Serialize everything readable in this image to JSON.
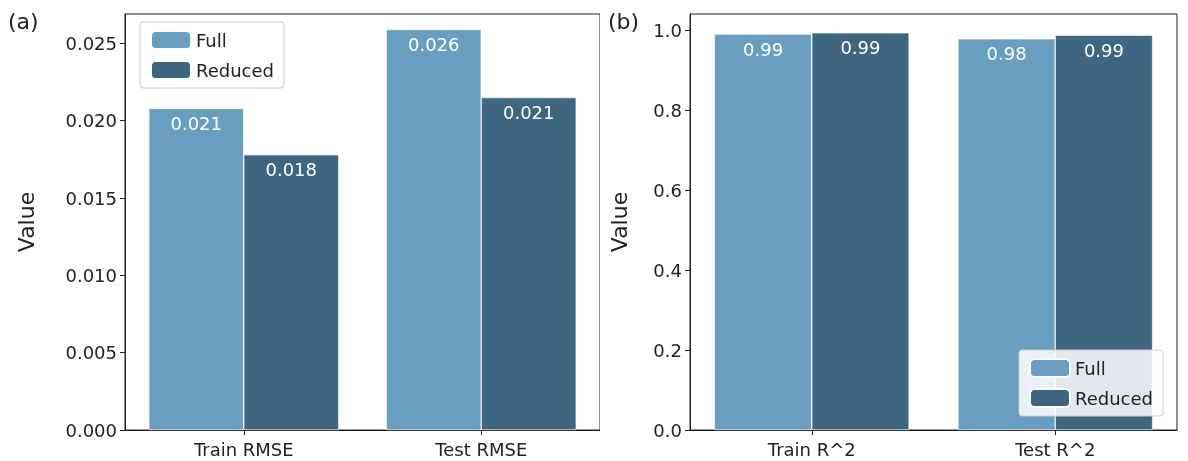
{
  "chart_data": [
    {
      "type": "bar",
      "annotations": [
        "(a)"
      ],
      "ylabel": "Value",
      "categories": [
        "Train RMSE",
        "Test RMSE"
      ],
      "series": [
        {
          "name": "Full",
          "color": "#6a9ec0",
          "values": [
            0.0208,
            0.0259
          ],
          "value_labels": [
            "0.021",
            "0.026"
          ]
        },
        {
          "name": "Reduced",
          "color": "#3f6680",
          "values": [
            0.0178,
            0.0215
          ],
          "value_labels": [
            "0.018",
            "0.021"
          ]
        }
      ],
      "ylim": [
        0,
        0.0269
      ],
      "yticks": [
        {
          "value": 0,
          "label": "0.000"
        },
        {
          "value": 0.005,
          "label": "0.005"
        },
        {
          "value": 0.01,
          "label": "0.010"
        },
        {
          "value": 0.015,
          "label": "0.015"
        },
        {
          "value": 0.02,
          "label": "0.020"
        },
        {
          "value": 0.025,
          "label": "0.025"
        }
      ],
      "legend": "top left",
      "grid": false
    },
    {
      "type": "bar",
      "annotations": [
        "(b)"
      ],
      "ylabel": "Value",
      "categories": [
        "Train R^2",
        "Test R^2"
      ],
      "series": [
        {
          "name": "Full",
          "color": "#6a9ec0",
          "values": [
            0.99,
            0.978
          ],
          "value_labels": [
            "0.99",
            "0.98"
          ]
        },
        {
          "name": "Reduced",
          "color": "#3f6680",
          "values": [
            0.993,
            0.987
          ],
          "value_labels": [
            "0.99",
            "0.99"
          ]
        }
      ],
      "ylim": [
        0,
        1.04
      ],
      "yticks": [
        {
          "value": 0,
          "label": "0.0"
        },
        {
          "value": 0.2,
          "label": "0.2"
        },
        {
          "value": 0.4,
          "label": "0.4"
        },
        {
          "value": 0.6,
          "label": "0.6"
        },
        {
          "value": 0.8,
          "label": "0.8"
        },
        {
          "value": 1,
          "label": "1.0"
        }
      ],
      "legend": "bottom right",
      "grid": false
    }
  ]
}
